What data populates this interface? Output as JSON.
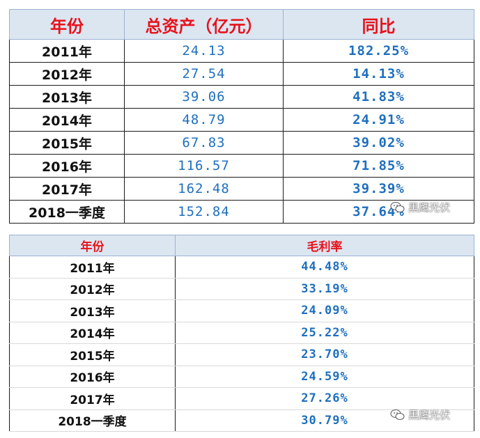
{
  "table1": {
    "headers": [
      "年份",
      "总资产（亿元）",
      "同比"
    ],
    "rows": [
      {
        "year": "2011年",
        "assets": "24.13",
        "yoy": "182.25%"
      },
      {
        "year": "2012年",
        "assets": "27.54",
        "yoy": "14.13%"
      },
      {
        "year": "2013年",
        "assets": "39.06",
        "yoy": "41.83%"
      },
      {
        "year": "2014年",
        "assets": "48.79",
        "yoy": "24.91%"
      },
      {
        "year": "2015年",
        "assets": "67.83",
        "yoy": "39.02%"
      },
      {
        "year": "2016年",
        "assets": "116.57",
        "yoy": "71.85%"
      },
      {
        "year": "2017年",
        "assets": "162.48",
        "yoy": "39.39%"
      },
      {
        "year": "2018一季度",
        "assets": "152.84",
        "yoy": "37.64%"
      }
    ]
  },
  "table2": {
    "headers": [
      "年份",
      "毛利率"
    ],
    "rows": [
      {
        "year": "2011年",
        "margin": "44.48%"
      },
      {
        "year": "2012年",
        "margin": "33.19%"
      },
      {
        "year": "2013年",
        "margin": "24.09%"
      },
      {
        "year": "2014年",
        "margin": "25.22%"
      },
      {
        "year": "2015年",
        "margin": "23.70%"
      },
      {
        "year": "2016年",
        "margin": "24.59%"
      },
      {
        "year": "2017年",
        "margin": "27.26%"
      },
      {
        "year": "2018一季度",
        "margin": "30.79%"
      }
    ]
  },
  "watermark": {
    "text": "黑鹰光伏",
    "icon": "wechat-icon"
  },
  "colors": {
    "header_bg": "#dce6f1",
    "header_text": "#e8121c",
    "value_text": "#1f6fbf"
  }
}
